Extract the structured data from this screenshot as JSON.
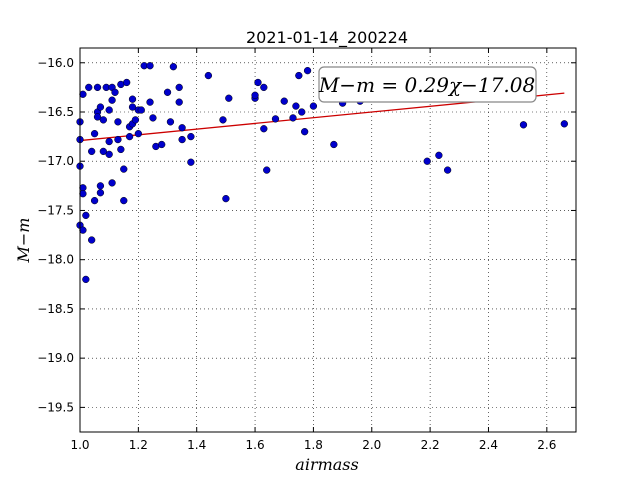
{
  "chart_data": {
    "type": "scatter",
    "title": "2021-01-14_200224",
    "xlabel": "airmass",
    "ylabel": "M−m",
    "xlim": [
      1.0,
      2.7
    ],
    "ylim": [
      -19.75,
      -15.85
    ],
    "xticks": [
      1.0,
      1.2,
      1.4,
      1.6,
      1.8,
      2.0,
      2.2,
      2.4,
      2.6
    ],
    "xtick_labels": [
      "1.0",
      "1.2",
      "1.4",
      "1.6",
      "1.8",
      "2.0",
      "2.2",
      "2.4",
      "2.6"
    ],
    "yticks": [
      -16.0,
      -16.5,
      -17.0,
      -17.5,
      -18.0,
      -18.5,
      -19.0,
      -19.5
    ],
    "ytick_labels": [
      "−16.0",
      "−16.5",
      "−17.0",
      "−17.5",
      "−18.0",
      "−18.5",
      "−19.0",
      "−19.5"
    ],
    "grid": true,
    "point_color": "#0000cc",
    "fit_color": "#cc0000",
    "fit": {
      "slope": 0.29,
      "intercept": -17.08,
      "x_range": [
        1.0,
        2.66
      ]
    },
    "annotation": "M−m = 0.29χ−17.08",
    "annotation_placement": "top-right",
    "points": [
      [
        1.0,
        -16.6
      ],
      [
        1.0,
        -16.78
      ],
      [
        1.0,
        -17.05
      ],
      [
        1.0,
        -17.65
      ],
      [
        1.01,
        -16.32
      ],
      [
        1.01,
        -17.27
      ],
      [
        1.01,
        -17.33
      ],
      [
        1.01,
        -17.7
      ],
      [
        1.02,
        -17.55
      ],
      [
        1.02,
        -18.2
      ],
      [
        1.03,
        -16.25
      ],
      [
        1.04,
        -17.8
      ],
      [
        1.04,
        -16.9
      ],
      [
        1.05,
        -16.72
      ],
      [
        1.05,
        -17.4
      ],
      [
        1.06,
        -16.25
      ],
      [
        1.06,
        -16.5
      ],
      [
        1.06,
        -16.55
      ],
      [
        1.07,
        -16.45
      ],
      [
        1.07,
        -17.25
      ],
      [
        1.07,
        -17.32
      ],
      [
        1.08,
        -16.58
      ],
      [
        1.08,
        -16.9
      ],
      [
        1.09,
        -16.25
      ],
      [
        1.1,
        -16.48
      ],
      [
        1.1,
        -16.93
      ],
      [
        1.1,
        -16.8
      ],
      [
        1.11,
        -16.38
      ],
      [
        1.11,
        -16.25
      ],
      [
        1.11,
        -17.22
      ],
      [
        1.12,
        -16.3
      ],
      [
        1.13,
        -16.6
      ],
      [
        1.13,
        -16.78
      ],
      [
        1.14,
        -16.22
      ],
      [
        1.14,
        -16.88
      ],
      [
        1.15,
        -17.4
      ],
      [
        1.15,
        -17.08
      ],
      [
        1.16,
        -16.2
      ],
      [
        1.17,
        -16.75
      ],
      [
        1.17,
        -16.65
      ],
      [
        1.18,
        -16.45
      ],
      [
        1.18,
        -16.37
      ],
      [
        1.18,
        -16.62
      ],
      [
        1.19,
        -16.58
      ],
      [
        1.2,
        -16.48
      ],
      [
        1.2,
        -16.72
      ],
      [
        1.21,
        -16.48
      ],
      [
        1.22,
        -16.03
      ],
      [
        1.24,
        -16.03
      ],
      [
        1.24,
        -16.4
      ],
      [
        1.25,
        -16.56
      ],
      [
        1.26,
        -16.85
      ],
      [
        1.28,
        -16.83
      ],
      [
        1.3,
        -16.3
      ],
      [
        1.31,
        -16.6
      ],
      [
        1.32,
        -16.04
      ],
      [
        1.34,
        -16.4
      ],
      [
        1.34,
        -16.25
      ],
      [
        1.35,
        -16.66
      ],
      [
        1.35,
        -16.78
      ],
      [
        1.38,
        -17.01
      ],
      [
        1.38,
        -16.75
      ],
      [
        1.44,
        -16.13
      ],
      [
        1.49,
        -16.58
      ],
      [
        1.5,
        -17.38
      ],
      [
        1.51,
        -16.36
      ],
      [
        1.6,
        -16.36
      ],
      [
        1.6,
        -16.33
      ],
      [
        1.61,
        -16.2
      ],
      [
        1.63,
        -16.25
      ],
      [
        1.63,
        -16.67
      ],
      [
        1.64,
        -17.09
      ],
      [
        1.67,
        -16.57
      ],
      [
        1.7,
        -16.39
      ],
      [
        1.73,
        -16.56
      ],
      [
        1.74,
        -16.44
      ],
      [
        1.75,
        -16.13
      ],
      [
        1.76,
        -16.5
      ],
      [
        1.77,
        -16.7
      ],
      [
        1.78,
        -16.08
      ],
      [
        1.8,
        -16.44
      ],
      [
        1.87,
        -16.83
      ],
      [
        1.9,
        -16.41
      ],
      [
        1.96,
        -16.39
      ],
      [
        2.19,
        -17.0
      ],
      [
        2.23,
        -16.94
      ],
      [
        2.26,
        -17.09
      ],
      [
        2.52,
        -16.63
      ],
      [
        2.66,
        -16.62
      ]
    ]
  }
}
